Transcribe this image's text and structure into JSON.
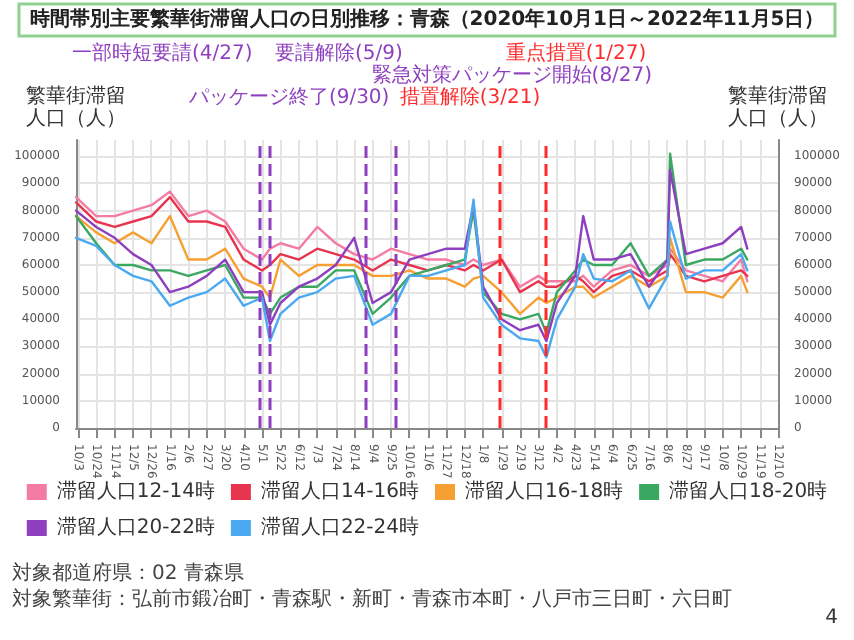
{
  "chart_data": {
    "type": "line",
    "title": "時間帯別主要繁華街滞留人口の日別推移：青森（2020年10月1日～2022年11月5日）",
    "ylabel": "繁華街滞留人口（人）",
    "y2label": "繁華街滞留人口（人）",
    "x": [
      "2020-10-01",
      "2020-10-24",
      "2020-11-14",
      "2020-12-05",
      "2020-12-26",
      "2021-01-16",
      "2021-02-06",
      "2021-02-27",
      "2021-03-20",
      "2021-04-10",
      "2021-05-01",
      "2021-05-10",
      "2021-05-22",
      "2021-06-12",
      "2021-07-03",
      "2021-07-24",
      "2021-08-14",
      "2021-09-04",
      "2021-09-25",
      "2021-10-16",
      "2021-11-06",
      "2021-11-27",
      "2021-12-18",
      "2021-12-28",
      "2022-01-08",
      "2022-01-29",
      "2022-02-19",
      "2022-03-12",
      "2022-03-21",
      "2022-04-02",
      "2022-04-23",
      "2022-05-02",
      "2022-05-14",
      "2022-06-04",
      "2022-06-25",
      "2022-07-16",
      "2022-08-06",
      "2022-08-09",
      "2022-08-27",
      "2022-09-17",
      "2022-10-08",
      "2022-10-29",
      "2022-11-05"
    ],
    "series": [
      {
        "name": "滞留人口12-14時",
        "color": "#f47ba3",
        "values": [
          85000,
          78000,
          78000,
          80000,
          82000,
          87000,
          78000,
          80000,
          76000,
          66000,
          62000,
          66000,
          68000,
          66000,
          74000,
          68000,
          64000,
          62000,
          66000,
          64000,
          62000,
          62000,
          60000,
          62000,
          60000,
          62000,
          52000,
          56000,
          54000,
          54000,
          54000,
          56000,
          52000,
          58000,
          60000,
          56000,
          60000,
          66000,
          58000,
          56000,
          54000,
          62000,
          54000
        ]
      },
      {
        "name": "滞留人口14-16時",
        "color": "#e8354f",
        "values": [
          83000,
          76000,
          74000,
          76000,
          78000,
          85000,
          76000,
          76000,
          74000,
          62000,
          58000,
          60000,
          64000,
          62000,
          66000,
          64000,
          62000,
          58000,
          62000,
          60000,
          58000,
          60000,
          58000,
          60000,
          58000,
          62000,
          50000,
          54000,
          52000,
          52000,
          56000,
          54000,
          50000,
          56000,
          58000,
          54000,
          58000,
          64000,
          56000,
          54000,
          56000,
          58000,
          56000
        ]
      },
      {
        "name": "滞留人口16-18時",
        "color": "#f6a033",
        "values": [
          78000,
          72000,
          68000,
          72000,
          68000,
          78000,
          62000,
          62000,
          66000,
          55000,
          52000,
          48000,
          62000,
          56000,
          60000,
          60000,
          60000,
          56000,
          56000,
          58000,
          55000,
          55000,
          52000,
          55000,
          56000,
          50000,
          42000,
          48000,
          46000,
          48000,
          52000,
          52000,
          48000,
          52000,
          56000,
          52000,
          56000,
          70000,
          50000,
          50000,
          48000,
          56000,
          50000
        ]
      },
      {
        "name": "滞留人口18-20時",
        "color": "#3ba861",
        "values": [
          78000,
          68000,
          60000,
          60000,
          58000,
          58000,
          56000,
          58000,
          60000,
          48000,
          48000,
          42000,
          48000,
          52000,
          52000,
          58000,
          58000,
          42000,
          48000,
          56000,
          58000,
          60000,
          62000,
          80000,
          50000,
          42000,
          40000,
          42000,
          35000,
          50000,
          58000,
          62000,
          60000,
          60000,
          68000,
          56000,
          62000,
          101000,
          60000,
          62000,
          62000,
          66000,
          62000
        ]
      },
      {
        "name": "滞留人口20-22時",
        "color": "#8e3fbf",
        "values": [
          80000,
          74000,
          70000,
          64000,
          60000,
          50000,
          52000,
          56000,
          62000,
          50000,
          50000,
          38000,
          46000,
          52000,
          55000,
          60000,
          70000,
          46000,
          50000,
          62000,
          64000,
          66000,
          66000,
          82000,
          52000,
          40000,
          36000,
          38000,
          32000,
          46000,
          56000,
          78000,
          62000,
          62000,
          64000,
          52000,
          62000,
          95000,
          64000,
          66000,
          68000,
          74000,
          66000
        ]
      },
      {
        "name": "滞留人口22-24時",
        "color": "#4aa9f0",
        "values": [
          70000,
          67000,
          60000,
          56000,
          54000,
          45000,
          48000,
          50000,
          55000,
          45000,
          48000,
          32000,
          42000,
          48000,
          50000,
          55000,
          56000,
          38000,
          42000,
          56000,
          56000,
          58000,
          60000,
          84000,
          48000,
          38000,
          33000,
          32000,
          26000,
          40000,
          52000,
          64000,
          55000,
          54000,
          58000,
          44000,
          56000,
          76000,
          55000,
          58000,
          58000,
          64000,
          58000
        ]
      }
    ],
    "xlim": [
      "2020-10-01",
      "2022-12-10"
    ],
    "xticks": [
      {
        "value": "2020-10-03",
        "label": "10/3"
      },
      {
        "value": "2020-10-24",
        "label": "10/24"
      },
      {
        "value": "2020-11-14",
        "label": "11/14"
      },
      {
        "value": "2020-12-05",
        "label": "12/5"
      },
      {
        "value": "2020-12-26",
        "label": "12/26"
      },
      {
        "value": "2021-01-16",
        "label": "1/16"
      },
      {
        "value": "2021-02-06",
        "label": "2/6"
      },
      {
        "value": "2021-02-27",
        "label": "2/27"
      },
      {
        "value": "2021-03-20",
        "label": "3/20"
      },
      {
        "value": "2021-04-10",
        "label": "4/10"
      },
      {
        "value": "2021-05-01",
        "label": "5/1"
      },
      {
        "value": "2021-05-22",
        "label": "5/22"
      },
      {
        "value": "2021-06-12",
        "label": "6/12"
      },
      {
        "value": "2021-07-03",
        "label": "7/3"
      },
      {
        "value": "2021-07-24",
        "label": "7/24"
      },
      {
        "value": "2021-08-14",
        "label": "8/14"
      },
      {
        "value": "2021-09-04",
        "label": "9/4"
      },
      {
        "value": "2021-09-25",
        "label": "9/25"
      },
      {
        "value": "2021-10-16",
        "label": "10/16"
      },
      {
        "value": "2021-11-06",
        "label": "11/6"
      },
      {
        "value": "2021-11-27",
        "label": "11/27"
      },
      {
        "value": "2021-12-18",
        "label": "12/18"
      },
      {
        "value": "2022-01-08",
        "label": "1/8"
      },
      {
        "value": "2022-01-29",
        "label": "1/29"
      },
      {
        "value": "2022-02-19",
        "label": "2/19"
      },
      {
        "value": "2022-03-12",
        "label": "3/12"
      },
      {
        "value": "2022-04-02",
        "label": "4/2"
      },
      {
        "value": "2022-04-23",
        "label": "4/23"
      },
      {
        "value": "2022-05-14",
        "label": "5/14"
      },
      {
        "value": "2022-06-04",
        "label": "6/4"
      },
      {
        "value": "2022-06-25",
        "label": "6/25"
      },
      {
        "value": "2022-07-16",
        "label": "7/16"
      },
      {
        "value": "2022-08-06",
        "label": "8/6"
      },
      {
        "value": "2022-08-27",
        "label": "8/27"
      },
      {
        "value": "2022-09-17",
        "label": "9/17"
      },
      {
        "value": "2022-10-08",
        "label": "10/8"
      },
      {
        "value": "2022-10-29",
        "label": "10/29"
      },
      {
        "value": "2022-11-19",
        "label": "11/19"
      },
      {
        "value": "2022-12-10",
        "label": "12/10"
      }
    ],
    "ylim": [
      0,
      106000
    ],
    "yticks": [
      0,
      10000,
      20000,
      30000,
      40000,
      50000,
      60000,
      70000,
      80000,
      90000,
      100000
    ],
    "y2lim": [
      0,
      106000
    ],
    "y2ticks": [
      0,
      10000,
      20000,
      30000,
      40000,
      50000,
      60000,
      70000,
      80000,
      90000,
      100000
    ],
    "ref_lines": [
      {
        "axis": "x",
        "value": "2021-04-27",
        "label": "一部時短要請(4/27)",
        "color": "#8e3fbf",
        "line_style": "dashed"
      },
      {
        "axis": "x",
        "value": "2021-05-09",
        "label": "要請解除(5/9)",
        "color": "#8e3fbf",
        "line_style": "dashed"
      },
      {
        "axis": "x",
        "value": "2021-08-27",
        "label": "緊急対策パッケージ開始(8/27)",
        "color": "#8e3fbf",
        "line_style": "dashed"
      },
      {
        "axis": "x",
        "value": "2021-09-30",
        "label": "パッケージ終了(9/30)",
        "color": "#8e3fbf",
        "line_style": "dashed"
      },
      {
        "axis": "x",
        "value": "2022-01-27",
        "label": "重点措置(1/27)",
        "color": "#ff2a2a",
        "line_style": "dashed"
      },
      {
        "axis": "x",
        "value": "2022-03-21",
        "label": "措置解除(3/21)",
        "color": "#ff2a2a",
        "line_style": "dashed"
      }
    ],
    "annotations": [
      "対象都道府県：02 青森県",
      "対象繁華街：弘前市鍛冶町・青森駅・新町・青森市本町・八戸市三日町・六日町",
      "4"
    ],
    "grid": true,
    "legend": "bottom",
    "line_style": "solid"
  }
}
